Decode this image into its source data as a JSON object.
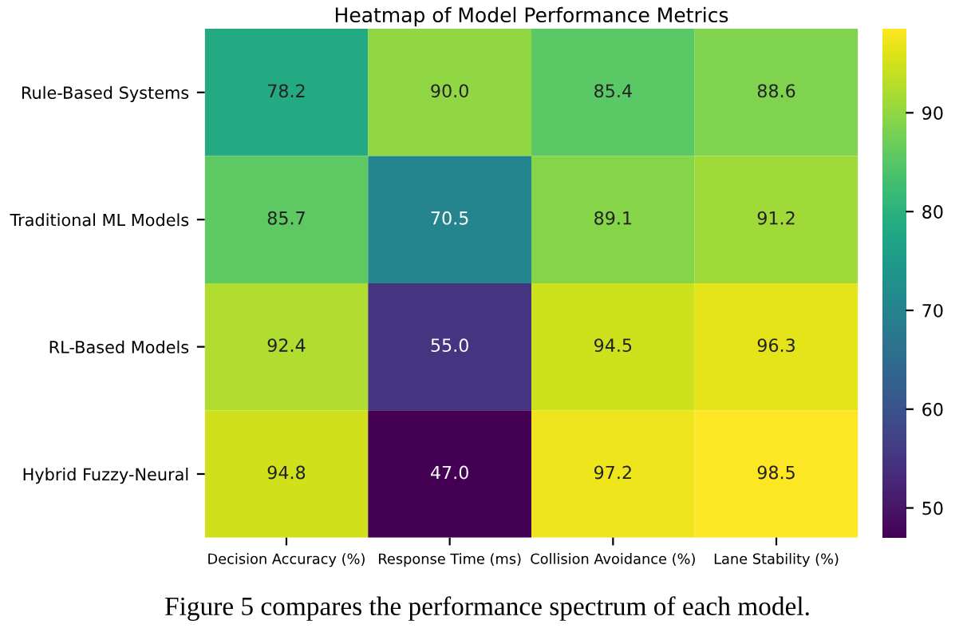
{
  "chart_data": {
    "type": "heatmap",
    "title": "Heatmap of Model Performance Metrics",
    "categories": [
      "Decision Accuracy (%)",
      "Response Time (ms)",
      "Collision Avoidance (%)",
      "Lane Stability (%)"
    ],
    "y_categories": [
      "Rule-Based Systems",
      "Traditional ML Models",
      "RL-Based Models",
      "Hybrid Fuzzy-Neural"
    ],
    "cells": [
      [
        78.2,
        90.0,
        85.4,
        88.6
      ],
      [
        85.7,
        70.5,
        89.1,
        91.2
      ],
      [
        92.4,
        55.0,
        94.5,
        96.3
      ],
      [
        94.8,
        47.0,
        97.2,
        98.5
      ]
    ],
    "data_labels": true,
    "cell_labels": [
      [
        "78.2",
        "90.0",
        "85.4",
        "88.6"
      ],
      [
        "85.7",
        "70.5",
        "89.1",
        "91.2"
      ],
      [
        "92.4",
        "55.0",
        "94.5",
        "96.3"
      ],
      [
        "94.8",
        "47.0",
        "97.2",
        "98.5"
      ]
    ],
    "clim": [
      47.0,
      98.5
    ],
    "cticks": [
      50,
      60,
      70,
      80,
      90
    ],
    "annotations": [
      "Figure 5 compares the performance spectrum of each model."
    ]
  }
}
